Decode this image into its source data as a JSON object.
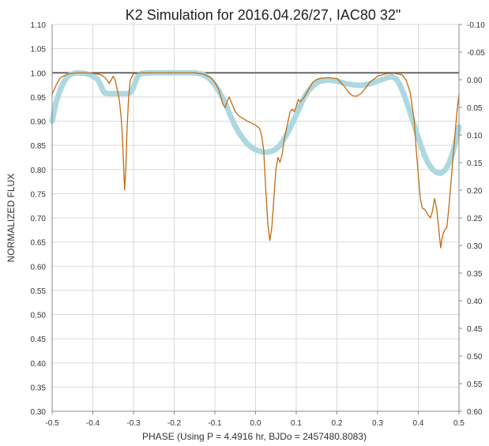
{
  "chart_data": {
    "type": "line",
    "title": "K2 Simulation for 2016.04.26/27, IAC80 32\"",
    "xlabel": "PHASE (Using P = 4.4916 hr, BJDo = 2457480.8083)",
    "ylabel": "NORMALIZED FLUX",
    "xlim": [
      -0.5,
      0.5
    ],
    "ylim": [
      0.3,
      1.1
    ],
    "y2lim": [
      -0.1,
      0.6
    ],
    "x_ticks": [
      "-0.5",
      "-0.4",
      "-0.3",
      "-0.2",
      "-0.1",
      "0.0",
      "0.1",
      "0.2",
      "0.3",
      "0.4",
      "0.5"
    ],
    "y_ticks": [
      "0.30",
      "0.35",
      "0.40",
      "0.45",
      "0.50",
      "0.55",
      "0.60",
      "0.65",
      "0.70",
      "0.75",
      "0.80",
      "0.85",
      "0.90",
      "0.95",
      "1.00",
      "1.05",
      "1.10"
    ],
    "y2_ticks": [
      "0.60",
      "0.55",
      "0.50",
      "0.45",
      "0.40",
      "0.35",
      "0.30",
      "0.25",
      "0.20",
      "0.15",
      "0.10",
      "0.05",
      "0.00",
      "-0.05",
      "-0.10"
    ],
    "grid": true,
    "reference_line": {
      "y": 1.0,
      "color": "#666666"
    },
    "series": [
      {
        "color": "#c46a0f",
        "axis": "left",
        "points": [
          [
            -0.5,
            0.955
          ],
          [
            -0.49,
            0.975
          ],
          [
            -0.48,
            0.99
          ],
          [
            -0.46,
            0.998
          ],
          [
            -0.44,
            1.0
          ],
          [
            -0.42,
            1.0
          ],
          [
            -0.4,
            0.999
          ],
          [
            -0.38,
            0.996
          ],
          [
            -0.37,
            0.99
          ],
          [
            -0.365,
            0.985
          ],
          [
            -0.36,
            0.978
          ],
          [
            -0.355,
            0.985
          ],
          [
            -0.35,
            0.993
          ],
          [
            -0.345,
            0.985
          ],
          [
            -0.34,
            0.965
          ],
          [
            -0.335,
            0.945
          ],
          [
            -0.33,
            0.905
          ],
          [
            -0.327,
            0.86
          ],
          [
            -0.324,
            0.8
          ],
          [
            -0.322,
            0.758
          ],
          [
            -0.319,
            0.8
          ],
          [
            -0.316,
            0.88
          ],
          [
            -0.312,
            0.95
          ],
          [
            -0.308,
            0.985
          ],
          [
            -0.3,
            0.998
          ],
          [
            -0.28,
            1.0
          ],
          [
            -0.2,
            1.0
          ],
          [
            -0.15,
            1.0
          ],
          [
            -0.13,
            0.998
          ],
          [
            -0.11,
            0.99
          ],
          [
            -0.1,
            0.98
          ],
          [
            -0.09,
            0.965
          ],
          [
            -0.085,
            0.95
          ],
          [
            -0.08,
            0.935
          ],
          [
            -0.075,
            0.928
          ],
          [
            -0.07,
            0.94
          ],
          [
            -0.065,
            0.95
          ],
          [
            -0.06,
            0.94
          ],
          [
            -0.05,
            0.92
          ],
          [
            -0.04,
            0.91
          ],
          [
            -0.03,
            0.905
          ],
          [
            -0.02,
            0.9
          ],
          [
            -0.01,
            0.896
          ],
          [
            0.0,
            0.892
          ],
          [
            0.01,
            0.885
          ],
          [
            0.015,
            0.87
          ],
          [
            0.02,
            0.84
          ],
          [
            0.025,
            0.76
          ],
          [
            0.03,
            0.69
          ],
          [
            0.035,
            0.653
          ],
          [
            0.04,
            0.68
          ],
          [
            0.045,
            0.74
          ],
          [
            0.05,
            0.8
          ],
          [
            0.055,
            0.825
          ],
          [
            0.06,
            0.815
          ],
          [
            0.065,
            0.83
          ],
          [
            0.07,
            0.86
          ],
          [
            0.075,
            0.88
          ],
          [
            0.08,
            0.9
          ],
          [
            0.085,
            0.92
          ],
          [
            0.09,
            0.925
          ],
          [
            0.095,
            0.92
          ],
          [
            0.1,
            0.93
          ],
          [
            0.105,
            0.945
          ],
          [
            0.11,
            0.94
          ],
          [
            0.12,
            0.95
          ],
          [
            0.13,
            0.965
          ],
          [
            0.14,
            0.98
          ],
          [
            0.15,
            0.986
          ],
          [
            0.16,
            0.989
          ],
          [
            0.18,
            0.99
          ],
          [
            0.2,
            0.988
          ],
          [
            0.21,
            0.98
          ],
          [
            0.22,
            0.97
          ],
          [
            0.23,
            0.958
          ],
          [
            0.24,
            0.952
          ],
          [
            0.25,
            0.952
          ],
          [
            0.26,
            0.958
          ],
          [
            0.27,
            0.968
          ],
          [
            0.28,
            0.98
          ],
          [
            0.3,
            0.993
          ],
          [
            0.32,
            0.998
          ],
          [
            0.34,
            0.999
          ],
          [
            0.36,
            0.996
          ],
          [
            0.37,
            0.985
          ],
          [
            0.38,
            0.96
          ],
          [
            0.39,
            0.9
          ],
          [
            0.395,
            0.84
          ],
          [
            0.4,
            0.79
          ],
          [
            0.405,
            0.74
          ],
          [
            0.41,
            0.72
          ],
          [
            0.415,
            0.718
          ],
          [
            0.42,
            0.712
          ],
          [
            0.425,
            0.705
          ],
          [
            0.43,
            0.7
          ],
          [
            0.435,
            0.715
          ],
          [
            0.44,
            0.74
          ],
          [
            0.445,
            0.72
          ],
          [
            0.45,
            0.68
          ],
          [
            0.455,
            0.638
          ],
          [
            0.46,
            0.665
          ],
          [
            0.465,
            0.675
          ],
          [
            0.47,
            0.68
          ],
          [
            0.475,
            0.72
          ],
          [
            0.48,
            0.77
          ],
          [
            0.485,
            0.82
          ],
          [
            0.49,
            0.87
          ],
          [
            0.495,
            0.92
          ],
          [
            0.5,
            0.955
          ]
        ]
      },
      {
        "color": "#add8e0",
        "axis": "left",
        "points": [
          [
            -0.5,
            0.9
          ],
          [
            -0.495,
            0.92
          ],
          [
            -0.49,
            0.94
          ],
          [
            -0.48,
            0.965
          ],
          [
            -0.47,
            0.983
          ],
          [
            -0.46,
            0.994
          ],
          [
            -0.45,
            0.998
          ],
          [
            -0.44,
            1.0
          ],
          [
            -0.42,
            0.999
          ],
          [
            -0.41,
            0.997
          ],
          [
            -0.4,
            0.993
          ],
          [
            -0.39,
            0.988
          ],
          [
            -0.385,
            0.982
          ],
          [
            -0.38,
            0.973
          ],
          [
            -0.375,
            0.963
          ],
          [
            -0.37,
            0.958
          ],
          [
            -0.36,
            0.957
          ],
          [
            -0.34,
            0.957
          ],
          [
            -0.32,
            0.957
          ],
          [
            -0.31,
            0.958
          ],
          [
            -0.305,
            0.962
          ],
          [
            -0.3,
            0.97
          ],
          [
            -0.295,
            0.982
          ],
          [
            -0.29,
            0.992
          ],
          [
            -0.285,
            0.997
          ],
          [
            -0.28,
            0.999
          ],
          [
            -0.26,
            1.0
          ],
          [
            -0.15,
            1.0
          ],
          [
            -0.13,
            0.997
          ],
          [
            -0.12,
            0.992
          ],
          [
            -0.11,
            0.985
          ],
          [
            -0.1,
            0.975
          ],
          [
            -0.09,
            0.962
          ],
          [
            -0.08,
            0.947
          ],
          [
            -0.07,
            0.928
          ],
          [
            -0.06,
            0.908
          ],
          [
            -0.05,
            0.89
          ],
          [
            -0.04,
            0.875
          ],
          [
            -0.03,
            0.863
          ],
          [
            -0.02,
            0.853
          ],
          [
            -0.01,
            0.846
          ],
          [
            0.0,
            0.841
          ],
          [
            0.01,
            0.838
          ],
          [
            0.02,
            0.836
          ],
          [
            0.03,
            0.836
          ],
          [
            0.04,
            0.838
          ],
          [
            0.05,
            0.842
          ],
          [
            0.06,
            0.85
          ],
          [
            0.07,
            0.863
          ],
          [
            0.08,
            0.878
          ],
          [
            0.09,
            0.895
          ],
          [
            0.1,
            0.913
          ],
          [
            0.11,
            0.932
          ],
          [
            0.12,
            0.95
          ],
          [
            0.13,
            0.963
          ],
          [
            0.14,
            0.972
          ],
          [
            0.15,
            0.979
          ],
          [
            0.16,
            0.983
          ],
          [
            0.18,
            0.985
          ],
          [
            0.2,
            0.983
          ],
          [
            0.22,
            0.978
          ],
          [
            0.24,
            0.975
          ],
          [
            0.26,
            0.974
          ],
          [
            0.28,
            0.977
          ],
          [
            0.3,
            0.983
          ],
          [
            0.32,
            0.989
          ],
          [
            0.335,
            0.992
          ],
          [
            0.345,
            0.988
          ],
          [
            0.355,
            0.975
          ],
          [
            0.365,
            0.955
          ],
          [
            0.375,
            0.93
          ],
          [
            0.385,
            0.905
          ],
          [
            0.395,
            0.878
          ],
          [
            0.405,
            0.853
          ],
          [
            0.415,
            0.83
          ],
          [
            0.425,
            0.812
          ],
          [
            0.435,
            0.8
          ],
          [
            0.445,
            0.794
          ],
          [
            0.455,
            0.792
          ],
          [
            0.465,
            0.798
          ],
          [
            0.475,
            0.812
          ],
          [
            0.485,
            0.835
          ],
          [
            0.495,
            0.868
          ],
          [
            0.5,
            0.888
          ]
        ]
      }
    ]
  }
}
